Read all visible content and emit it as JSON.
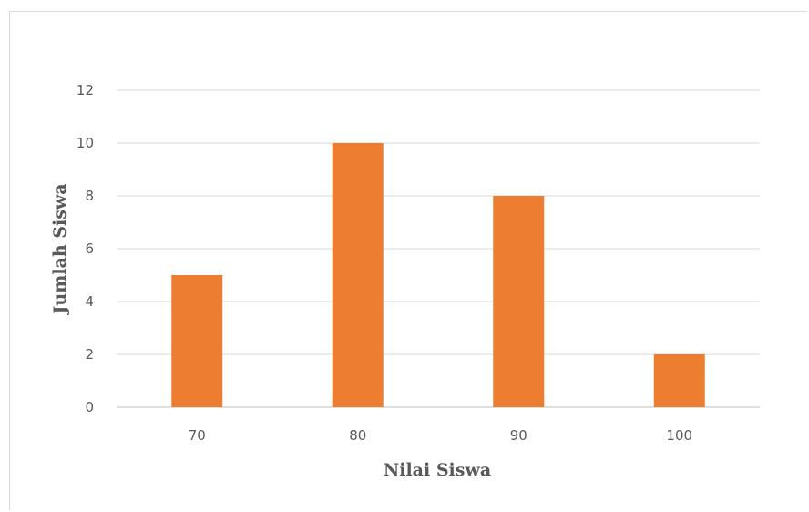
{
  "chart_data": {
    "type": "bar",
    "title": "",
    "xlabel": "Nilai Siswa",
    "ylabel": "Jumlah Siswa",
    "categories": [
      "70",
      "80",
      "90",
      "100"
    ],
    "values": [
      5,
      10,
      8,
      2
    ],
    "ylim": [
      0,
      12
    ],
    "yticks": [
      0,
      2,
      4,
      6,
      8,
      10,
      12
    ],
    "grid": true,
    "legend": "none",
    "bar_color": "#ED7D31",
    "grid_color": "#D9D9D9",
    "text_color": "#595959"
  }
}
